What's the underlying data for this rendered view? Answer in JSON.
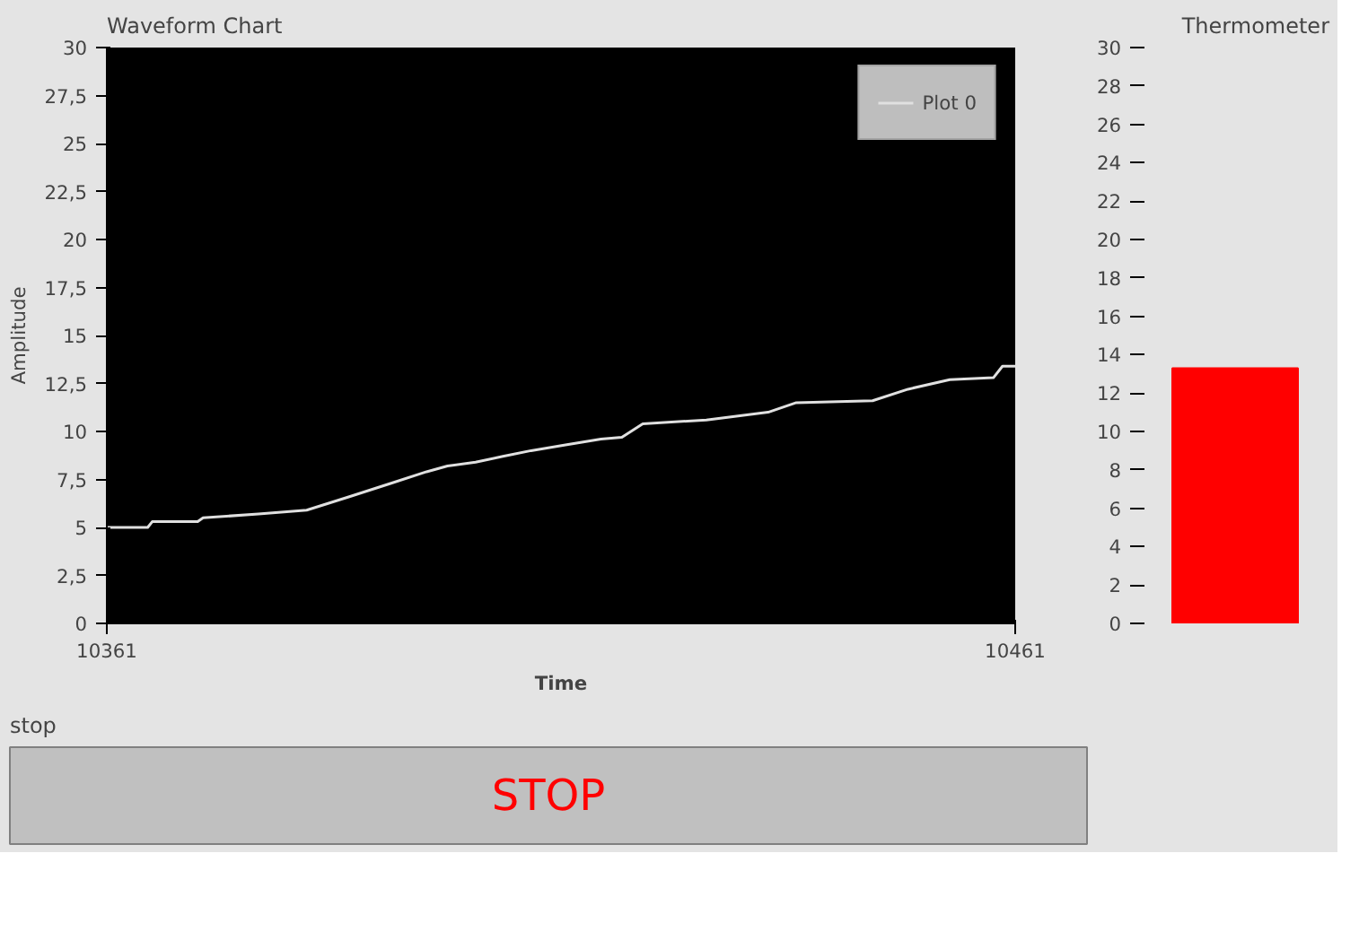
{
  "chart_data": [
    {
      "type": "line",
      "title": "Waveform Chart",
      "xlabel": "Time",
      "ylabel": "Amplitude",
      "xlim": [
        10361,
        10461
      ],
      "xticks": [
        10361,
        10461
      ],
      "ylim": [
        0,
        30
      ],
      "yticks": [
        0,
        {
          "value": 2.5,
          "label": "2,5"
        },
        5,
        {
          "value": 7.5,
          "label": "7,5"
        },
        10,
        {
          "value": 12.5,
          "label": "12,5"
        },
        15,
        {
          "value": 17.5,
          "label": "17,5"
        },
        20,
        {
          "value": 22.5,
          "label": "22,5"
        },
        25,
        {
          "value": 27.5,
          "label": "27,5"
        },
        30
      ],
      "grid": false,
      "legend": "top right",
      "marker": "none",
      "line_style": "solid",
      "series": [
        {
          "name": "Plot 0",
          "color": "#e0e0e0",
          "x": [
            10361,
            10365.5,
            10366,
            10371,
            10371.6,
            10377.7,
            10383,
            10387.7,
            10392.3,
            10396.2,
            10398.5,
            10401.6,
            10404.6,
            10407.7,
            10411.5,
            10415.4,
            10417.7,
            10420,
            10427,
            10433.8,
            10436.9,
            10445.3,
            10449.2,
            10453.8,
            10458.6,
            10459.6,
            10461
          ],
          "values": [
            5.0,
            5.0,
            5.3,
            5.3,
            5.5,
            5.7,
            5.9,
            6.6,
            7.3,
            7.9,
            8.2,
            8.4,
            8.7,
            9.0,
            9.3,
            9.6,
            9.7,
            10.4,
            10.6,
            11.0,
            11.5,
            11.6,
            12.2,
            12.7,
            12.8,
            13.4,
            13.4
          ]
        }
      ]
    },
    {
      "type": "bar",
      "title": "Thermometer",
      "categories": [
        null
      ],
      "values": [
        13.3
      ],
      "color": "#ff0000",
      "ylim": [
        0,
        30
      ],
      "yticks": [
        0,
        2,
        4,
        6,
        8,
        10,
        12,
        14,
        16,
        18,
        20,
        22,
        24,
        26,
        28,
        30
      ],
      "grid": false
    },
    {
      "type": "other",
      "title": "stop",
      "annotations": [
        "STOP"
      ]
    }
  ]
}
